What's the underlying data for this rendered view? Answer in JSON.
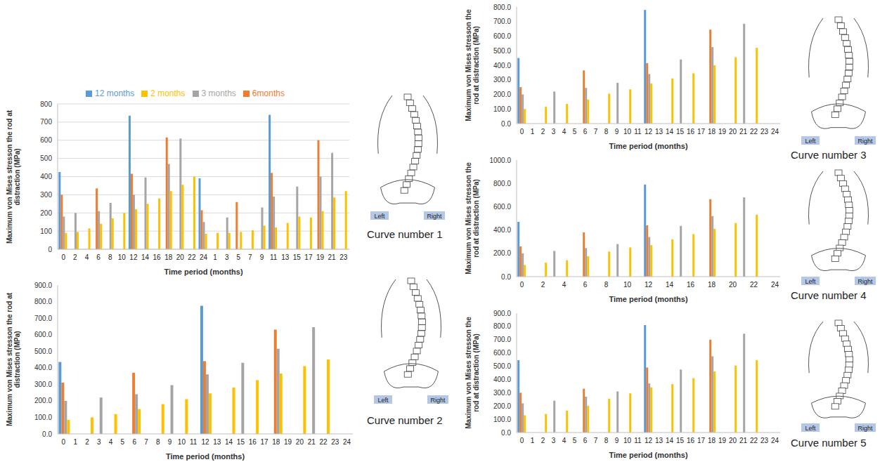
{
  "chart_data": [
    {
      "type": "bar",
      "caption": "Curve number 1",
      "annotations": [
        "Left",
        "Right"
      ],
      "x_label": "Time period (months)",
      "y_label": "Maximum von Mises stresson the rod at distraction (MPa)",
      "legend": "top",
      "grid": true,
      "categories": [
        "0",
        "2",
        "4",
        "6",
        "8",
        "10",
        "12",
        "14",
        "16",
        "18",
        "20",
        "22",
        "24",
        "1",
        "3",
        "5",
        "7",
        "9",
        "11",
        "13",
        "15",
        "17",
        "19",
        "21",
        "23"
      ],
      "ylim": [
        0,
        800
      ],
      "yticks": [
        0,
        100,
        200,
        300,
        400,
        500,
        600,
        700,
        800
      ],
      "series": [
        {
          "name": "12 months",
          "color": "#5b9bd5",
          "values": [
            425,
            null,
            null,
            null,
            null,
            null,
            735,
            null,
            null,
            null,
            null,
            null,
            390,
            null,
            null,
            null,
            null,
            null,
            740,
            null,
            null,
            null,
            null,
            null,
            null
          ]
        },
        {
          "name": "6months",
          "color": "#ed7d31",
          "values": [
            300,
            null,
            null,
            335,
            null,
            null,
            415,
            null,
            null,
            615,
            null,
            null,
            215,
            null,
            null,
            260,
            null,
            null,
            420,
            null,
            null,
            null,
            600,
            null,
            null
          ]
        },
        {
          "name": "3 months",
          "color": "#a5a5a5",
          "values": [
            180,
            200,
            null,
            210,
            255,
            null,
            300,
            395,
            null,
            470,
            610,
            null,
            150,
            null,
            175,
            null,
            null,
            230,
            290,
            null,
            345,
            null,
            400,
            530,
            null
          ]
        },
        {
          "name": "2 months",
          "color": "#ffc000",
          "values": [
            90,
            95,
            115,
            140,
            170,
            200,
            220,
            250,
            280,
            320,
            355,
            400,
            85,
            90,
            90,
            95,
            105,
            130,
            120,
            145,
            180,
            175,
            210,
            285,
            320
          ]
        }
      ]
    },
    {
      "type": "bar",
      "caption": "Curve number 2",
      "annotations": [
        "Left",
        "Right"
      ],
      "x_label": "Time period (months)",
      "y_label": "Maximum von Mises stresson the rod at distraction (MPa)",
      "categories": [
        "0",
        "1",
        "2",
        "3",
        "4",
        "5",
        "6",
        "7",
        "8",
        "9",
        "10",
        "11",
        "12",
        "13",
        "14",
        "15",
        "16",
        "17",
        "18",
        "19",
        "20",
        "21",
        "22",
        "23",
        "24"
      ],
      "ylim": [
        0,
        900
      ],
      "yticks": [
        {
          "value": 0,
          "label": "0.0"
        },
        {
          "value": 100,
          "label": "100.0"
        },
        {
          "value": 200,
          "label": "200.0"
        },
        {
          "value": 300,
          "label": "300.0"
        },
        {
          "value": 400,
          "label": "400.0"
        },
        {
          "value": 500,
          "label": "500.0"
        },
        {
          "value": 600,
          "label": "600.0"
        },
        {
          "value": 700,
          "label": "700.0"
        },
        {
          "value": 800,
          "label": "800.0"
        },
        {
          "value": 900,
          "label": "900.0"
        }
      ],
      "series": [
        {
          "color": "#5b9bd5",
          "values": [
            435,
            null,
            null,
            null,
            null,
            null,
            null,
            null,
            null,
            null,
            null,
            null,
            775,
            null,
            null,
            null,
            null,
            null,
            null,
            null,
            null,
            null,
            null,
            null,
            null
          ]
        },
        {
          "color": "#ed7d31",
          "values": [
            310,
            null,
            null,
            null,
            null,
            null,
            370,
            null,
            null,
            null,
            null,
            null,
            440,
            null,
            null,
            null,
            null,
            null,
            630,
            null,
            null,
            null,
            null,
            null,
            null
          ]
        },
        {
          "color": "#a5a5a5",
          "values": [
            200,
            null,
            null,
            220,
            null,
            null,
            240,
            null,
            null,
            295,
            null,
            null,
            360,
            null,
            null,
            430,
            null,
            null,
            515,
            null,
            null,
            645,
            null,
            null,
            null
          ]
        },
        {
          "color": "#ffc000",
          "values": [
            85,
            null,
            100,
            null,
            120,
            null,
            150,
            null,
            180,
            null,
            210,
            null,
            245,
            null,
            280,
            null,
            325,
            null,
            365,
            null,
            410,
            null,
            450,
            null,
            null
          ]
        }
      ]
    },
    {
      "type": "bar",
      "caption": "Curve number 3",
      "annotations": [
        "Left",
        "Right"
      ],
      "x_label": "Time period (months)",
      "y_label": "Maximum von Mises stresson the rod at distraction (MPa)",
      "categories": [
        "0",
        "1",
        "2",
        "3",
        "4",
        "5",
        "6",
        "7",
        "8",
        "9",
        "10",
        "11",
        "12",
        "13",
        "14",
        "15",
        "16",
        "17",
        "18",
        "19",
        "20",
        "21",
        "22",
        "23",
        "24"
      ],
      "ylim": [
        0,
        800
      ],
      "yticks": [
        {
          "value": 0,
          "label": "0.0"
        },
        {
          "value": 100,
          "label": "100.0"
        },
        {
          "value": 200,
          "label": "200.0"
        },
        {
          "value": 300,
          "label": "300.0"
        },
        {
          "value": 400,
          "label": "400.0"
        },
        {
          "value": 500,
          "label": "500.0"
        },
        {
          "value": 600,
          "label": "600.0"
        },
        {
          "value": 700,
          "label": "700.0"
        },
        {
          "value": 800,
          "label": "800.0"
        }
      ],
      "series": [
        {
          "color": "#5b9bd5",
          "values": [
            450,
            null,
            null,
            null,
            null,
            null,
            null,
            null,
            null,
            null,
            null,
            null,
            780,
            null,
            null,
            null,
            null,
            null,
            null,
            null,
            null,
            null,
            null,
            null,
            null
          ]
        },
        {
          "color": "#ed7d31",
          "values": [
            250,
            null,
            null,
            null,
            null,
            null,
            365,
            null,
            null,
            null,
            null,
            null,
            415,
            null,
            null,
            null,
            null,
            null,
            645,
            null,
            null,
            null,
            null,
            null,
            null
          ]
        },
        {
          "color": "#a5a5a5",
          "values": [
            200,
            null,
            null,
            220,
            null,
            null,
            245,
            null,
            null,
            280,
            null,
            null,
            340,
            null,
            null,
            440,
            null,
            null,
            525,
            null,
            null,
            685,
            null,
            null,
            null
          ]
        },
        {
          "color": "#ffc000",
          "values": [
            100,
            null,
            115,
            null,
            135,
            null,
            165,
            null,
            205,
            null,
            235,
            null,
            275,
            null,
            310,
            null,
            345,
            null,
            400,
            null,
            455,
            null,
            520,
            null,
            null
          ]
        }
      ]
    },
    {
      "type": "bar",
      "caption": "Curve number 4",
      "annotations": [
        "Left",
        "Right"
      ],
      "x_label": "Time period (months)",
      "y_label": "Maximum von Mises stresson the rod at distraction (MPa)",
      "categories": [
        "0",
        null,
        "2",
        null,
        "4",
        null,
        "6",
        null,
        "8",
        null,
        "10",
        null,
        "12",
        null,
        "14",
        null,
        "16",
        null,
        "18",
        null,
        "20",
        null,
        "22",
        null,
        "24"
      ],
      "ylim": [
        0,
        1000
      ],
      "yticks": [
        {
          "value": 0,
          "label": "0.0"
        },
        {
          "value": 200,
          "label": "200.0"
        },
        {
          "value": 400,
          "label": "400.0"
        },
        {
          "value": 600,
          "label": "600.0"
        },
        {
          "value": 800,
          "label": "800.0"
        },
        {
          "value": 1000,
          "label": "1000.0"
        }
      ],
      "series": [
        {
          "color": "#5b9bd5",
          "values": [
            470,
            null,
            null,
            null,
            null,
            null,
            null,
            null,
            null,
            null,
            null,
            null,
            790,
            null,
            null,
            null,
            null,
            null,
            null,
            null,
            null,
            null,
            null,
            null,
            null
          ]
        },
        {
          "color": "#ed7d31",
          "values": [
            260,
            null,
            null,
            null,
            null,
            null,
            380,
            null,
            null,
            null,
            null,
            null,
            440,
            null,
            null,
            null,
            null,
            null,
            665,
            null,
            null,
            null,
            null,
            null,
            null
          ]
        },
        {
          "color": "#a5a5a5",
          "values": [
            200,
            null,
            null,
            220,
            null,
            null,
            245,
            null,
            null,
            280,
            null,
            null,
            340,
            null,
            null,
            435,
            null,
            null,
            520,
            null,
            null,
            680,
            null,
            null,
            null
          ]
        },
        {
          "color": "#ffc000",
          "values": [
            100,
            null,
            120,
            null,
            140,
            null,
            175,
            null,
            215,
            null,
            250,
            null,
            270,
            null,
            320,
            null,
            365,
            null,
            410,
            null,
            460,
            null,
            530,
            null,
            null
          ]
        }
      ]
    },
    {
      "type": "bar",
      "caption": "Curve number 5",
      "annotations": [
        "Left",
        "Right"
      ],
      "x_label": "Time period (months)",
      "y_label": "Maximum von Mises stresson the rod at distraction (MPa)",
      "categories": [
        "0",
        "1",
        "2",
        "3",
        "4",
        "5",
        "6",
        "7",
        "8",
        "9",
        "10",
        "11",
        "12",
        "13",
        "14",
        "15",
        "16",
        "17",
        "18",
        "19",
        "20",
        "21",
        "22",
        "23",
        "24"
      ],
      "ylim": [
        0,
        900
      ],
      "yticks": [
        {
          "value": 0,
          "label": "0.0"
        },
        {
          "value": 100,
          "label": "100.0"
        },
        {
          "value": 200,
          "label": "200.0"
        },
        {
          "value": 300,
          "label": "300.0"
        },
        {
          "value": 400,
          "label": "400.0"
        },
        {
          "value": 500,
          "label": "500.0"
        },
        {
          "value": 600,
          "label": "600.0"
        },
        {
          "value": 700,
          "label": "700.0"
        },
        {
          "value": 800,
          "label": "800.0"
        },
        {
          "value": 900,
          "label": "900.0"
        }
      ],
      "series": [
        {
          "color": "#5b9bd5",
          "values": [
            545,
            null,
            null,
            null,
            null,
            null,
            null,
            null,
            null,
            null,
            null,
            null,
            810,
            null,
            null,
            null,
            null,
            null,
            null,
            null,
            null,
            null,
            null,
            null,
            null
          ]
        },
        {
          "color": "#ed7d31",
          "values": [
            300,
            null,
            null,
            null,
            null,
            null,
            330,
            null,
            null,
            null,
            null,
            null,
            490,
            null,
            null,
            null,
            null,
            null,
            700,
            null,
            null,
            null,
            null,
            null,
            null
          ]
        },
        {
          "color": "#a5a5a5",
          "values": [
            220,
            null,
            null,
            240,
            null,
            null,
            270,
            null,
            null,
            310,
            null,
            null,
            370,
            null,
            null,
            475,
            null,
            null,
            575,
            null,
            null,
            745,
            null,
            null,
            null
          ]
        },
        {
          "color": "#ffc000",
          "values": [
            130,
            null,
            140,
            null,
            165,
            null,
            200,
            null,
            255,
            null,
            295,
            null,
            340,
            null,
            365,
            null,
            410,
            null,
            460,
            null,
            505,
            null,
            545,
            null,
            null
          ]
        }
      ]
    }
  ]
}
